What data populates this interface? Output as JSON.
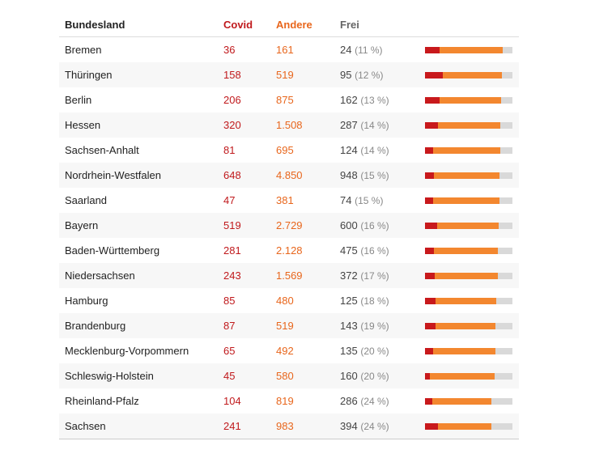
{
  "chart_data": {
    "type": "table",
    "columns": {
      "land": "Bundesland",
      "covid": "Covid",
      "andere": "Andere",
      "frei": "Frei"
    },
    "colors": {
      "covid": "#c8191c",
      "andere": "#f3872f",
      "frei": "#d9d9d9"
    },
    "rows": [
      {
        "land": "Bremen",
        "covid": "36",
        "andere": "161",
        "frei": "24",
        "pct": "(11 %)",
        "covid_n": 36,
        "andere_n": 161,
        "frei_n": 24
      },
      {
        "land": "Thüringen",
        "covid": "158",
        "andere": "519",
        "frei": "95",
        "pct": "(12 %)",
        "covid_n": 158,
        "andere_n": 519,
        "frei_n": 95
      },
      {
        "land": "Berlin",
        "covid": "206",
        "andere": "875",
        "frei": "162",
        "pct": "(13 %)",
        "covid_n": 206,
        "andere_n": 875,
        "frei_n": 162
      },
      {
        "land": "Hessen",
        "covid": "320",
        "andere": "1.508",
        "frei": "287",
        "pct": "(14 %)",
        "covid_n": 320,
        "andere_n": 1508,
        "frei_n": 287
      },
      {
        "land": "Sachsen-Anhalt",
        "covid": "81",
        "andere": "695",
        "frei": "124",
        "pct": "(14 %)",
        "covid_n": 81,
        "andere_n": 695,
        "frei_n": 124
      },
      {
        "land": "Nordrhein-Westfalen",
        "covid": "648",
        "andere": "4.850",
        "frei": "948",
        "pct": "(15 %)",
        "covid_n": 648,
        "andere_n": 4850,
        "frei_n": 948
      },
      {
        "land": "Saarland",
        "covid": "47",
        "andere": "381",
        "frei": "74",
        "pct": "(15 %)",
        "covid_n": 47,
        "andere_n": 381,
        "frei_n": 74
      },
      {
        "land": "Bayern",
        "covid": "519",
        "andere": "2.729",
        "frei": "600",
        "pct": "(16 %)",
        "covid_n": 519,
        "andere_n": 2729,
        "frei_n": 600
      },
      {
        "land": "Baden-Württemberg",
        "covid": "281",
        "andere": "2.128",
        "frei": "475",
        "pct": "(16 %)",
        "covid_n": 281,
        "andere_n": 2128,
        "frei_n": 475
      },
      {
        "land": "Niedersachsen",
        "covid": "243",
        "andere": "1.569",
        "frei": "372",
        "pct": "(17 %)",
        "covid_n": 243,
        "andere_n": 1569,
        "frei_n": 372
      },
      {
        "land": "Hamburg",
        "covid": "85",
        "andere": "480",
        "frei": "125",
        "pct": "(18 %)",
        "covid_n": 85,
        "andere_n": 480,
        "frei_n": 125
      },
      {
        "land": "Brandenburg",
        "covid": "87",
        "andere": "519",
        "frei": "143",
        "pct": "(19 %)",
        "covid_n": 87,
        "andere_n": 519,
        "frei_n": 143
      },
      {
        "land": "Mecklenburg-Vorpommern",
        "covid": "65",
        "andere": "492",
        "frei": "135",
        "pct": "(20 %)",
        "covid_n": 65,
        "andere_n": 492,
        "frei_n": 135
      },
      {
        "land": "Schleswig-Holstein",
        "covid": "45",
        "andere": "580",
        "frei": "160",
        "pct": "(20 %)",
        "covid_n": 45,
        "andere_n": 580,
        "frei_n": 160
      },
      {
        "land": "Rheinland-Pfalz",
        "covid": "104",
        "andere": "819",
        "frei": "286",
        "pct": "(24 %)",
        "covid_n": 104,
        "andere_n": 819,
        "frei_n": 286
      },
      {
        "land": "Sachsen",
        "covid": "241",
        "andere": "983",
        "frei": "394",
        "pct": "(24 %)",
        "covid_n": 241,
        "andere_n": 983,
        "frei_n": 394
      }
    ]
  }
}
